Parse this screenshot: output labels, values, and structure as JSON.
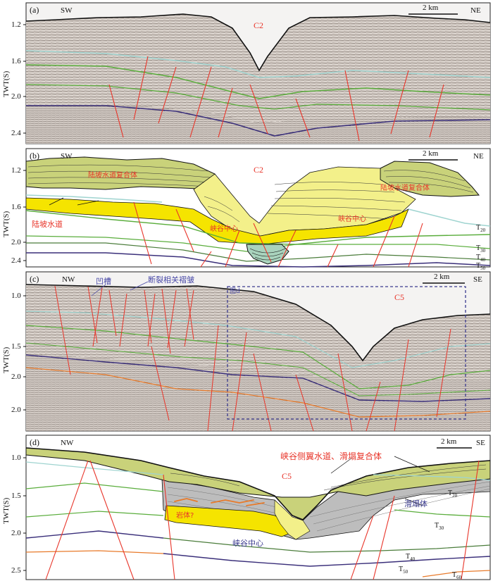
{
  "panels": [
    {
      "label": "(a)",
      "left_dir": "SW",
      "right_dir": "NE",
      "scale": "2 km",
      "canyon": "C2",
      "axis_title": "TWT(S)",
      "ticks": [
        "1.2",
        "1.6",
        "2.0",
        "2.4"
      ]
    },
    {
      "label": "(b)",
      "left_dir": "SW",
      "right_dir": "NE",
      "scale": "2 km",
      "canyon": "C2",
      "axis_title": "TWT(S)",
      "ticks": [
        "1.2",
        "1.6",
        "2.0",
        "2.4"
      ],
      "annotations": {
        "slope_channel": "陆坡水道",
        "canyon_center_left": "峡谷中心",
        "canyon_center_right": "峡谷中心",
        "complex_left": "陆坡水道复合体",
        "complex_right": "陆坡水道复合体"
      },
      "horizons": [
        "T20",
        "T30",
        "T40",
        "T50"
      ]
    },
    {
      "label": "(c)",
      "left_dir": "NW",
      "right_dir": "SE",
      "scale": "2 km",
      "canyon": "C5",
      "axis_title": "TWT(S)",
      "ticks": [
        "1.0",
        "1.5",
        "2.0",
        "2.0"
      ],
      "annotations": {
        "trough": "凹槽",
        "fault_fold": "断裂相关褶皱",
        "figure_ref": "图d"
      }
    },
    {
      "label": "(d)",
      "left_dir": "NW",
      "right_dir": "SE",
      "scale": "2 km",
      "canyon": "C5",
      "axis_title": "TWT(S)",
      "ticks": [
        "1.0",
        "1.5",
        "2.0",
        "2.5"
      ],
      "annotations": {
        "complex_title": "峡谷侧翼水道、滑塌复合体",
        "rock_body": "岩体?",
        "slump": "滑塌体",
        "canyon_center": "峡谷中心"
      },
      "horizons": [
        "T20",
        "T30",
        "T40",
        "T50",
        "T60"
      ]
    }
  ],
  "colors": {
    "fault": "#e8352a",
    "t20": "#9fd4d0",
    "t30": "#5aad3c",
    "t40": "#4a7c3a",
    "t50": "#3a2f7a",
    "t60": "#e87a2a",
    "channel_complex": "#c9d27a",
    "canyon_fill": "#f3f08a",
    "yellow_band": "#f5e400",
    "slump_fill": "#bdbdbd",
    "seismic_bg": "#d8d2cc",
    "annotation_blue": "#4a4aa8"
  }
}
